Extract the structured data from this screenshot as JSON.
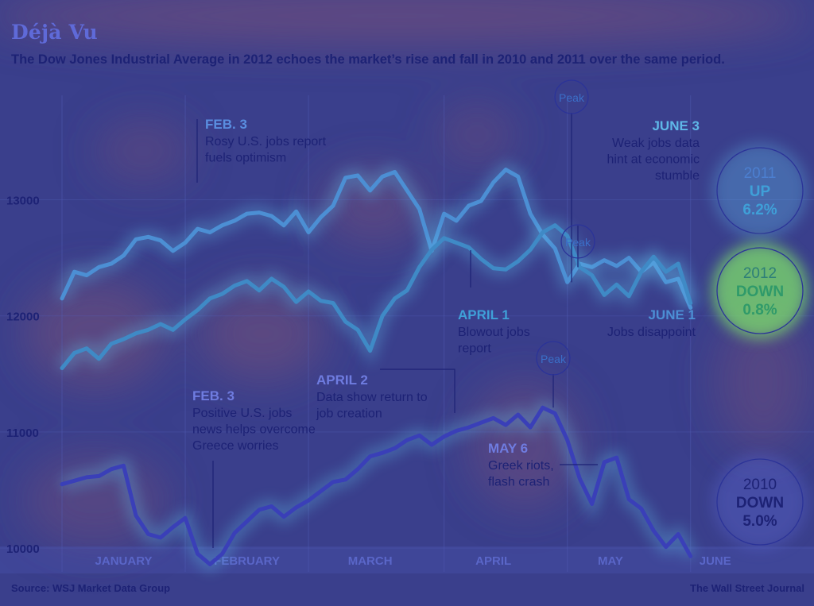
{
  "title": "Déjà Vu",
  "subtitle": "The Dow Jones Industrial Average in 2012 echoes the market’s rise and fall in 2010 and 2011 over the same period.",
  "source": "Source: WSJ Market Data Group",
  "credit": "The Wall Street Journal",
  "colors": {
    "background": "#3a3f8c",
    "series_2011": "#4c8fd4",
    "series_2012": "#3f8ac6",
    "series_2010": "#3a3fb8",
    "text_dark": "#1d2275",
    "text_light": "#6fa6e8",
    "accent_green": "#5fc47e"
  },
  "chart_data": {
    "type": "line",
    "title": "Déjà Vu",
    "subtitle": "The Dow Jones Industrial Average in 2012 echoes the market’s rise and fall in 2010 and 2011 over the same period.",
    "xlabel": "",
    "ylabel": "",
    "x_unit": "trading day index",
    "xlim": [
      0,
      105
    ],
    "ylim": [
      9850,
      13900
    ],
    "y_ticks": [
      10000,
      11000,
      12000,
      13000
    ],
    "x_tick_labels": [
      {
        "label": "JANUARY",
        "x": 10
      },
      {
        "label": "FEBRUARY",
        "x": 30
      },
      {
        "label": "MARCH",
        "x": 50
      },
      {
        "label": "APRIL",
        "x": 70
      },
      {
        "label": "MAY",
        "x": 89
      },
      {
        "label": "JUNE",
        "x": 106
      }
    ],
    "month_boundaries": [
      0,
      20,
      40,
      62,
      82,
      102
    ],
    "grid": true,
    "series": [
      {
        "name": "2011",
        "x": [
          0,
          2,
          4,
          6,
          8,
          10,
          12,
          14,
          16,
          18,
          20,
          22,
          24,
          26,
          28,
          30,
          32,
          34,
          36,
          38,
          40,
          42,
          44,
          46,
          48,
          50,
          52,
          54,
          56,
          58,
          60,
          62,
          64,
          66,
          68,
          70,
          72,
          74,
          76,
          78,
          80,
          82,
          84,
          86,
          88,
          90,
          92,
          94,
          96,
          98,
          100,
          102
        ],
        "values": [
          12150,
          12380,
          12350,
          12420,
          12450,
          12520,
          12660,
          12680,
          12650,
          12560,
          12630,
          12750,
          12720,
          12780,
          12820,
          12880,
          12890,
          12860,
          12780,
          12900,
          12720,
          12850,
          12950,
          13190,
          13210,
          13080,
          13200,
          13240,
          13080,
          12920,
          12560,
          12880,
          12820,
          12950,
          12990,
          13150,
          13260,
          13200,
          12880,
          12700,
          12580,
          12290,
          12450,
          12420,
          12480,
          12430,
          12500,
          12380,
          12460,
          12290,
          12320,
          12070
        ],
        "annotations": [
          {
            "x": 10,
            "title": "FEB. 3",
            "text": "Rosy U.S. jobs report fuels optimism"
          },
          {
            "x": 83,
            "title": "Peak",
            "text": ""
          },
          {
            "x": 88,
            "title": "JUNE 3",
            "text": "Weak jobs data hint at economic stumble"
          }
        ]
      },
      {
        "name": "2012",
        "x": [
          0,
          2,
          4,
          6,
          8,
          10,
          12,
          14,
          16,
          18,
          20,
          22,
          24,
          26,
          28,
          30,
          32,
          34,
          36,
          38,
          40,
          42,
          44,
          46,
          48,
          50,
          52,
          54,
          56,
          58,
          60,
          62,
          64,
          66,
          68,
          70,
          72,
          74,
          76,
          78,
          80,
          82,
          84,
          86,
          88,
          90,
          92,
          94,
          96,
          98,
          100,
          102
        ],
        "values": [
          11550,
          11680,
          11720,
          11630,
          11760,
          11800,
          11850,
          11880,
          11930,
          11880,
          11970,
          12050,
          12150,
          12190,
          12260,
          12300,
          12220,
          12320,
          12250,
          12120,
          12210,
          12130,
          12110,
          11950,
          11880,
          11700,
          12000,
          12150,
          12220,
          12420,
          12570,
          12670,
          12630,
          12590,
          12490,
          12410,
          12400,
          12470,
          12570,
          12720,
          12780,
          12690,
          12420,
          12350,
          12180,
          12270,
          12170,
          12380,
          12510,
          12380,
          12450,
          12110
        ],
        "annotations": [
          {
            "x": 84,
            "title": "Peak",
            "text": ""
          },
          {
            "x": 64,
            "title": "APRIL 1",
            "text": "Blowout jobs report"
          },
          {
            "x": 102,
            "title": "JUNE 1",
            "text": "Jobs disappoint"
          }
        ]
      },
      {
        "name": "2010",
        "x": [
          0,
          2,
          4,
          6,
          8,
          10,
          12,
          14,
          16,
          18,
          20,
          22,
          24,
          26,
          28,
          30,
          32,
          34,
          36,
          38,
          40,
          42,
          44,
          46,
          48,
          50,
          52,
          54,
          56,
          58,
          60,
          62,
          64,
          66,
          68,
          70,
          72,
          74,
          76,
          78,
          80,
          82,
          84,
          86,
          88,
          90,
          92,
          94,
          96,
          98,
          100,
          102
        ],
        "values": [
          10550,
          10580,
          10610,
          10620,
          10680,
          10710,
          10280,
          10120,
          10090,
          10180,
          10260,
          9950,
          9860,
          9950,
          10130,
          10230,
          10330,
          10360,
          10270,
          10350,
          10410,
          10490,
          10570,
          10590,
          10680,
          10790,
          10820,
          10860,
          10930,
          10970,
          10890,
          10960,
          11010,
          11040,
          11080,
          11120,
          11060,
          11150,
          11040,
          11210,
          11160,
          10930,
          10600,
          10380,
          10740,
          10780,
          10420,
          10340,
          10150,
          10010,
          10120,
          9930
        ],
        "annotations": [
          {
            "x": 20,
            "title": "FEB. 3",
            "text": "Positive U.S. jobs news helps overcome Greece worries"
          },
          {
            "x": 62,
            "title": "APRIL 2",
            "text": "Data show return to job creation"
          },
          {
            "x": 79,
            "title": "Peak",
            "text": ""
          },
          {
            "x": 86,
            "title": "MAY 6",
            "text": "Greek riots, flash crash"
          }
        ]
      }
    ],
    "summary_badges": [
      {
        "year": "2011",
        "direction": "UP",
        "change": "6.2%"
      },
      {
        "year": "2012",
        "direction": "DOWN",
        "change": "0.8%"
      },
      {
        "year": "2010",
        "direction": "DOWN",
        "change": "5.0%"
      }
    ]
  }
}
